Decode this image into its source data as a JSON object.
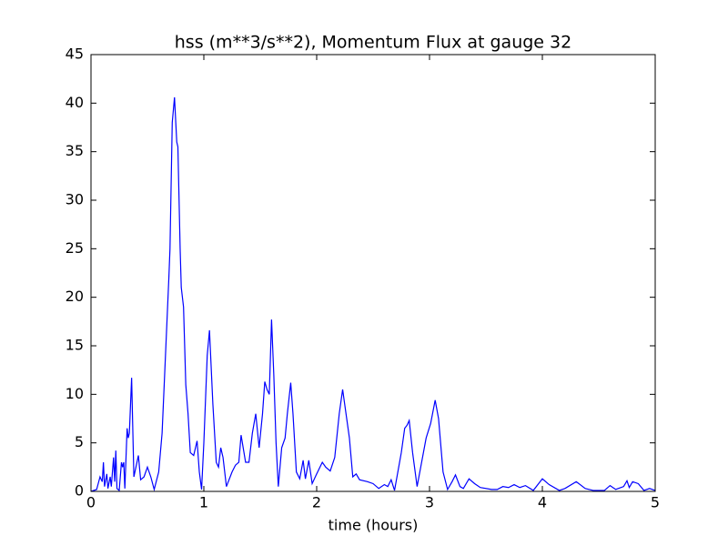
{
  "chart_data": {
    "type": "line",
    "title": "hss (m**3/s**2), Momentum Flux at gauge 32",
    "xlabel": "time (hours)",
    "xlim": [
      0,
      5
    ],
    "xticks": [
      0,
      1,
      2,
      3,
      4,
      5
    ],
    "ylim": [
      0,
      45
    ],
    "yticks": [
      0,
      5,
      10,
      15,
      20,
      25,
      30,
      35,
      40,
      45
    ],
    "zero_line": {
      "value": 0,
      "color": "#000000",
      "style": "dashed"
    },
    "series": [
      {
        "color": "#0000ff",
        "x": [
          0,
          0.05,
          0.08,
          0.1,
          0.11,
          0.12,
          0.14,
          0.15,
          0.17,
          0.18,
          0.2,
          0.21,
          0.22,
          0.23,
          0.25,
          0.27,
          0.28,
          0.29,
          0.3,
          0.32,
          0.33,
          0.34,
          0.36,
          0.38,
          0.42,
          0.44,
          0.47,
          0.5,
          0.53,
          0.56,
          0.6,
          0.63,
          0.66,
          0.69,
          0.7,
          0.72,
          0.74,
          0.76,
          0.77,
          0.79,
          0.8,
          0.82,
          0.84,
          0.86,
          0.88,
          0.91,
          0.94,
          0.96,
          0.98,
          1.0,
          1.03,
          1.05,
          1.08,
          1.11,
          1.13,
          1.15,
          1.17,
          1.2,
          1.25,
          1.28,
          1.31,
          1.33,
          1.37,
          1.4,
          1.43,
          1.46,
          1.49,
          1.52,
          1.54,
          1.56,
          1.58,
          1.6,
          1.62,
          1.64,
          1.66,
          1.69,
          1.72,
          1.74,
          1.77,
          1.79,
          1.82,
          1.85,
          1.88,
          1.9,
          1.93,
          1.96,
          2.0,
          2.05,
          2.08,
          2.12,
          2.16,
          2.2,
          2.23,
          2.26,
          2.29,
          2.32,
          2.35,
          2.38,
          2.45,
          2.5,
          2.55,
          2.6,
          2.63,
          2.66,
          2.69,
          2.75,
          2.78,
          2.8,
          2.82,
          2.85,
          2.89,
          2.93,
          2.97,
          3.01,
          3.05,
          3.08,
          3.12,
          3.16,
          3.2,
          3.23,
          3.27,
          3.3,
          3.35,
          3.4,
          3.45,
          3.55,
          3.6,
          3.65,
          3.7,
          3.75,
          3.8,
          3.85,
          3.92,
          4.0,
          4.06,
          4.15,
          4.2,
          4.3,
          4.38,
          4.45,
          4.55,
          4.6,
          4.65,
          4.72,
          4.75,
          4.77,
          4.8,
          4.85,
          4.9,
          4.95,
          5.0
        ],
        "values": [
          0,
          0.2,
          1.5,
          1.0,
          3.0,
          0.5,
          1.8,
          0.3,
          1.5,
          0.5,
          3.5,
          1.0,
          4.2,
          0.3,
          0.1,
          3.0,
          2.5,
          3.0,
          0.3,
          6.5,
          5.5,
          6.0,
          11.7,
          1.5,
          3.7,
          1.2,
          1.5,
          2.5,
          1.5,
          0.2,
          2.0,
          6,
          14,
          22,
          25,
          38,
          40.6,
          36,
          35.5,
          25,
          21,
          19,
          11,
          8,
          4,
          3.7,
          5.2,
          2,
          0.2,
          5,
          14,
          16.6,
          9,
          3,
          2.5,
          4.5,
          3.5,
          0.5,
          2.0,
          2.7,
          3,
          5.8,
          3,
          3,
          6,
          8,
          4.5,
          8,
          11.3,
          10.5,
          10,
          17.7,
          12,
          5,
          0.5,
          4.5,
          5.5,
          8,
          11.2,
          8,
          2,
          1.3,
          3.2,
          1.3,
          3.2,
          0.8,
          1.8,
          3,
          2.5,
          2.1,
          3.5,
          8,
          10.5,
          8,
          5.5,
          1.5,
          1.8,
          1.2,
          1.0,
          0.8,
          0.3,
          0.7,
          0.5,
          1.2,
          0.1,
          4,
          6.5,
          6.8,
          7.3,
          4,
          0.5,
          3,
          5.5,
          7,
          9.4,
          7.5,
          2,
          0.2,
          1,
          1.7,
          0.5,
          0.3,
          1.3,
          0.8,
          0.4,
          0.2,
          0.2,
          0.5,
          0.4,
          0.7,
          0.4,
          0.6,
          0.1,
          1.3,
          0.7,
          0.1,
          0.3,
          1.0,
          0.3,
          0.1,
          0.1,
          0.6,
          0.2,
          0.5,
          1.1,
          0.4,
          1.0,
          0.8,
          0.1,
          0.3,
          0.1
        ]
      }
    ]
  }
}
